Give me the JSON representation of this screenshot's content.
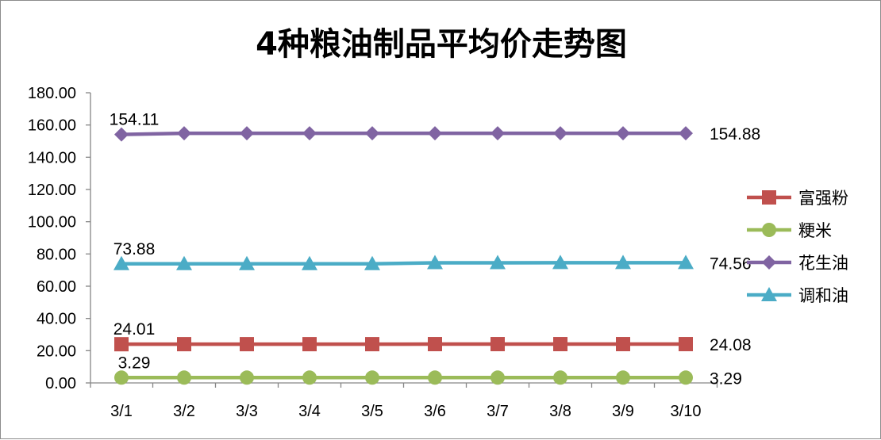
{
  "chart_data": {
    "type": "line",
    "title": "4种粮油制品平均价走势图",
    "xlabel": "",
    "ylabel": "",
    "categories": [
      "3/1",
      "3/2",
      "3/3",
      "3/4",
      "3/5",
      "3/6",
      "3/7",
      "3/8",
      "3/9",
      "3/10"
    ],
    "y_ticks": [
      "0.00",
      "20.00",
      "40.00",
      "60.00",
      "80.00",
      "100.00",
      "120.00",
      "140.00",
      "160.00",
      "180.00"
    ],
    "ylim": [
      0,
      180
    ],
    "grid": false,
    "legend_position": "right",
    "series": [
      {
        "name": "富强粉",
        "color": "#c0504d",
        "marker": "square",
        "values": [
          24.01,
          24.05,
          24.05,
          24.05,
          24.05,
          24.08,
          24.08,
          24.08,
          24.08,
          24.08
        ],
        "first_label": "24.01",
        "last_label": "24.08"
      },
      {
        "name": "粳米",
        "color": "#9bbb59",
        "marker": "circle",
        "values": [
          3.29,
          3.29,
          3.29,
          3.29,
          3.29,
          3.29,
          3.29,
          3.29,
          3.29,
          3.29
        ],
        "first_label": "3.29",
        "last_label": "3.29"
      },
      {
        "name": "花生油",
        "color": "#8064a2",
        "marker": "diamond",
        "values": [
          154.11,
          154.88,
          154.88,
          154.88,
          154.88,
          154.88,
          154.88,
          154.88,
          154.88,
          154.88
        ],
        "first_label": "154.11",
        "last_label": "154.88"
      },
      {
        "name": "调和油",
        "color": "#4bacc6",
        "marker": "triangle",
        "values": [
          73.88,
          73.9,
          73.9,
          73.9,
          73.9,
          74.5,
          74.5,
          74.56,
          74.56,
          74.56
        ],
        "first_label": "73.88",
        "last_label": "74.56"
      }
    ]
  }
}
